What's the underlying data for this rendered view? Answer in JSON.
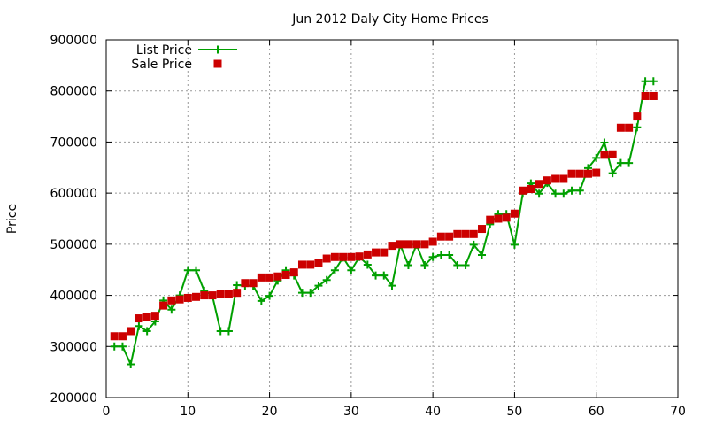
{
  "chart_data": {
    "type": "line",
    "title": "Jun 2012 Daly City Home Prices",
    "xlabel": "",
    "ylabel": "Price",
    "xlim": [
      0,
      70
    ],
    "ylim": [
      200000,
      900000
    ],
    "xticks": [
      0,
      10,
      20,
      30,
      40,
      50,
      60,
      70
    ],
    "yticks": [
      200000,
      300000,
      400000,
      500000,
      600000,
      700000,
      800000,
      900000
    ],
    "grid": true,
    "legend_position": "top-left",
    "series": [
      {
        "name": "List Price",
        "style": "line-plus",
        "color": "#00a000",
        "x": [
          1,
          2,
          3,
          4,
          5,
          6,
          7,
          8,
          9,
          10,
          11,
          12,
          13,
          14,
          15,
          16,
          17,
          18,
          19,
          20,
          21,
          22,
          23,
          24,
          25,
          26,
          27,
          28,
          29,
          30,
          31,
          32,
          33,
          34,
          35,
          36,
          37,
          38,
          39,
          40,
          41,
          42,
          43,
          44,
          45,
          46,
          47,
          48,
          49,
          50,
          51,
          52,
          53,
          54,
          55,
          56,
          57,
          58,
          59,
          60,
          61,
          62,
          63,
          64,
          65,
          66,
          67
        ],
        "y": [
          300000,
          300000,
          265000,
          340000,
          330000,
          349000,
          390000,
          372000,
          400000,
          449000,
          449000,
          409000,
          399000,
          330000,
          330000,
          420000,
          419000,
          419000,
          389000,
          399000,
          429000,
          449000,
          439000,
          405000,
          405000,
          419000,
          430000,
          449000,
          474000,
          449000,
          475000,
          460000,
          439000,
          439000,
          419000,
          499000,
          459000,
          499000,
          459000,
          475000,
          479000,
          479000,
          459000,
          459000,
          499000,
          479000,
          539000,
          559000,
          559000,
          499000,
          599000,
          619000,
          599000,
          620000,
          599000,
          599000,
          605000,
          605000,
          649000,
          669000,
          699000,
          639000,
          659000,
          659000,
          729000,
          819000,
          819000
        ]
      },
      {
        "name": "Sale Price",
        "style": "square-markers",
        "color": "#cc0000",
        "x": [
          1,
          2,
          3,
          4,
          5,
          6,
          7,
          8,
          9,
          10,
          11,
          12,
          13,
          14,
          15,
          16,
          17,
          18,
          19,
          20,
          21,
          22,
          23,
          24,
          25,
          26,
          27,
          28,
          29,
          30,
          31,
          32,
          33,
          34,
          35,
          36,
          37,
          38,
          39,
          40,
          41,
          42,
          43,
          44,
          45,
          46,
          47,
          48,
          49,
          50,
          51,
          52,
          53,
          54,
          55,
          56,
          57,
          58,
          59,
          60,
          61,
          62,
          63,
          64,
          65,
          66,
          67
        ],
        "y": [
          320000,
          320000,
          330000,
          355000,
          357000,
          360000,
          380000,
          390000,
          392000,
          395000,
          397000,
          400000,
          400000,
          403000,
          403000,
          405000,
          424000,
          424000,
          435000,
          435000,
          437000,
          440000,
          445000,
          460000,
          460000,
          463000,
          472000,
          475000,
          475000,
          475000,
          476000,
          480000,
          484000,
          484000,
          497000,
          500000,
          500000,
          500000,
          500000,
          505000,
          515000,
          515000,
          520000,
          520000,
          520000,
          530000,
          548000,
          550000,
          552000,
          560000,
          605000,
          608000,
          618000,
          625000,
          628000,
          628000,
          638000,
          638000,
          638000,
          640000,
          675000,
          676000,
          728000,
          728000,
          750000,
          790000,
          790000
        ]
      }
    ]
  }
}
